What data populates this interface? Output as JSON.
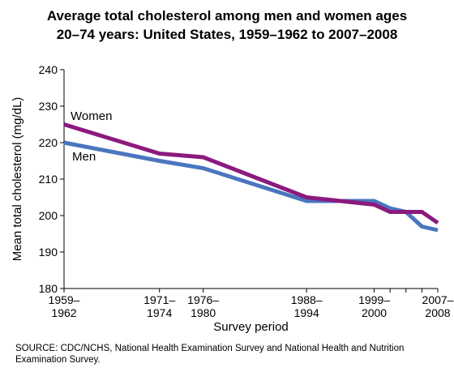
{
  "chart_data": {
    "type": "line",
    "title_lines": [
      "Average total cholesterol among men and women ages",
      "20–74 years: United States, 1959–1962 to 2007–2008"
    ],
    "xlabel": "Survey period",
    "ylabel": "Mean total cholesterol (mg/dL)",
    "ylim": [
      180,
      240
    ],
    "yticks": [
      180,
      190,
      200,
      210,
      220,
      230,
      240
    ],
    "xlim": [
      1960.5,
      2007.5
    ],
    "xticks": [
      {
        "x": 1960.5,
        "line1": "1959–",
        "line2": "1962"
      },
      {
        "x": 1972.5,
        "line1": "1971–",
        "line2": "1974"
      },
      {
        "x": 1978,
        "line1": "1976–",
        "line2": "1980"
      },
      {
        "x": 1991,
        "line1": "1988–",
        "line2": "1994"
      },
      {
        "x": 1999.5,
        "line1": "1999–",
        "line2": "2000"
      },
      {
        "x": 2001.5,
        "line1": "",
        "line2": ""
      },
      {
        "x": 2003.5,
        "line1": "",
        "line2": ""
      },
      {
        "x": 2005.5,
        "line1": "",
        "line2": ""
      },
      {
        "x": 2007.5,
        "line1": "2007–",
        "line2": "2008"
      }
    ],
    "series": [
      {
        "name": "Women",
        "color": "#8b1a7e",
        "x": [
          1960.5,
          1972.5,
          1978,
          1991,
          1999.5,
          2001.5,
          2003.5,
          2005.5,
          2007.5
        ],
        "y": [
          225,
          217,
          216,
          205,
          203,
          201,
          201,
          201,
          198
        ]
      },
      {
        "name": "Men",
        "color": "#4a76bf",
        "x": [
          1960.5,
          1972.5,
          1978,
          1991,
          1999.5,
          2001.5,
          2003.5,
          2005.5,
          2007.5
        ],
        "y": [
          220,
          215,
          213,
          204,
          204,
          202,
          201,
          197,
          196
        ]
      }
    ],
    "grid": false,
    "legend": "inline labels near start of lines"
  },
  "source_note": "SOURCE: CDC/NCHS, National Health Examination Survey and National Health and Nutrition Examination Survey."
}
